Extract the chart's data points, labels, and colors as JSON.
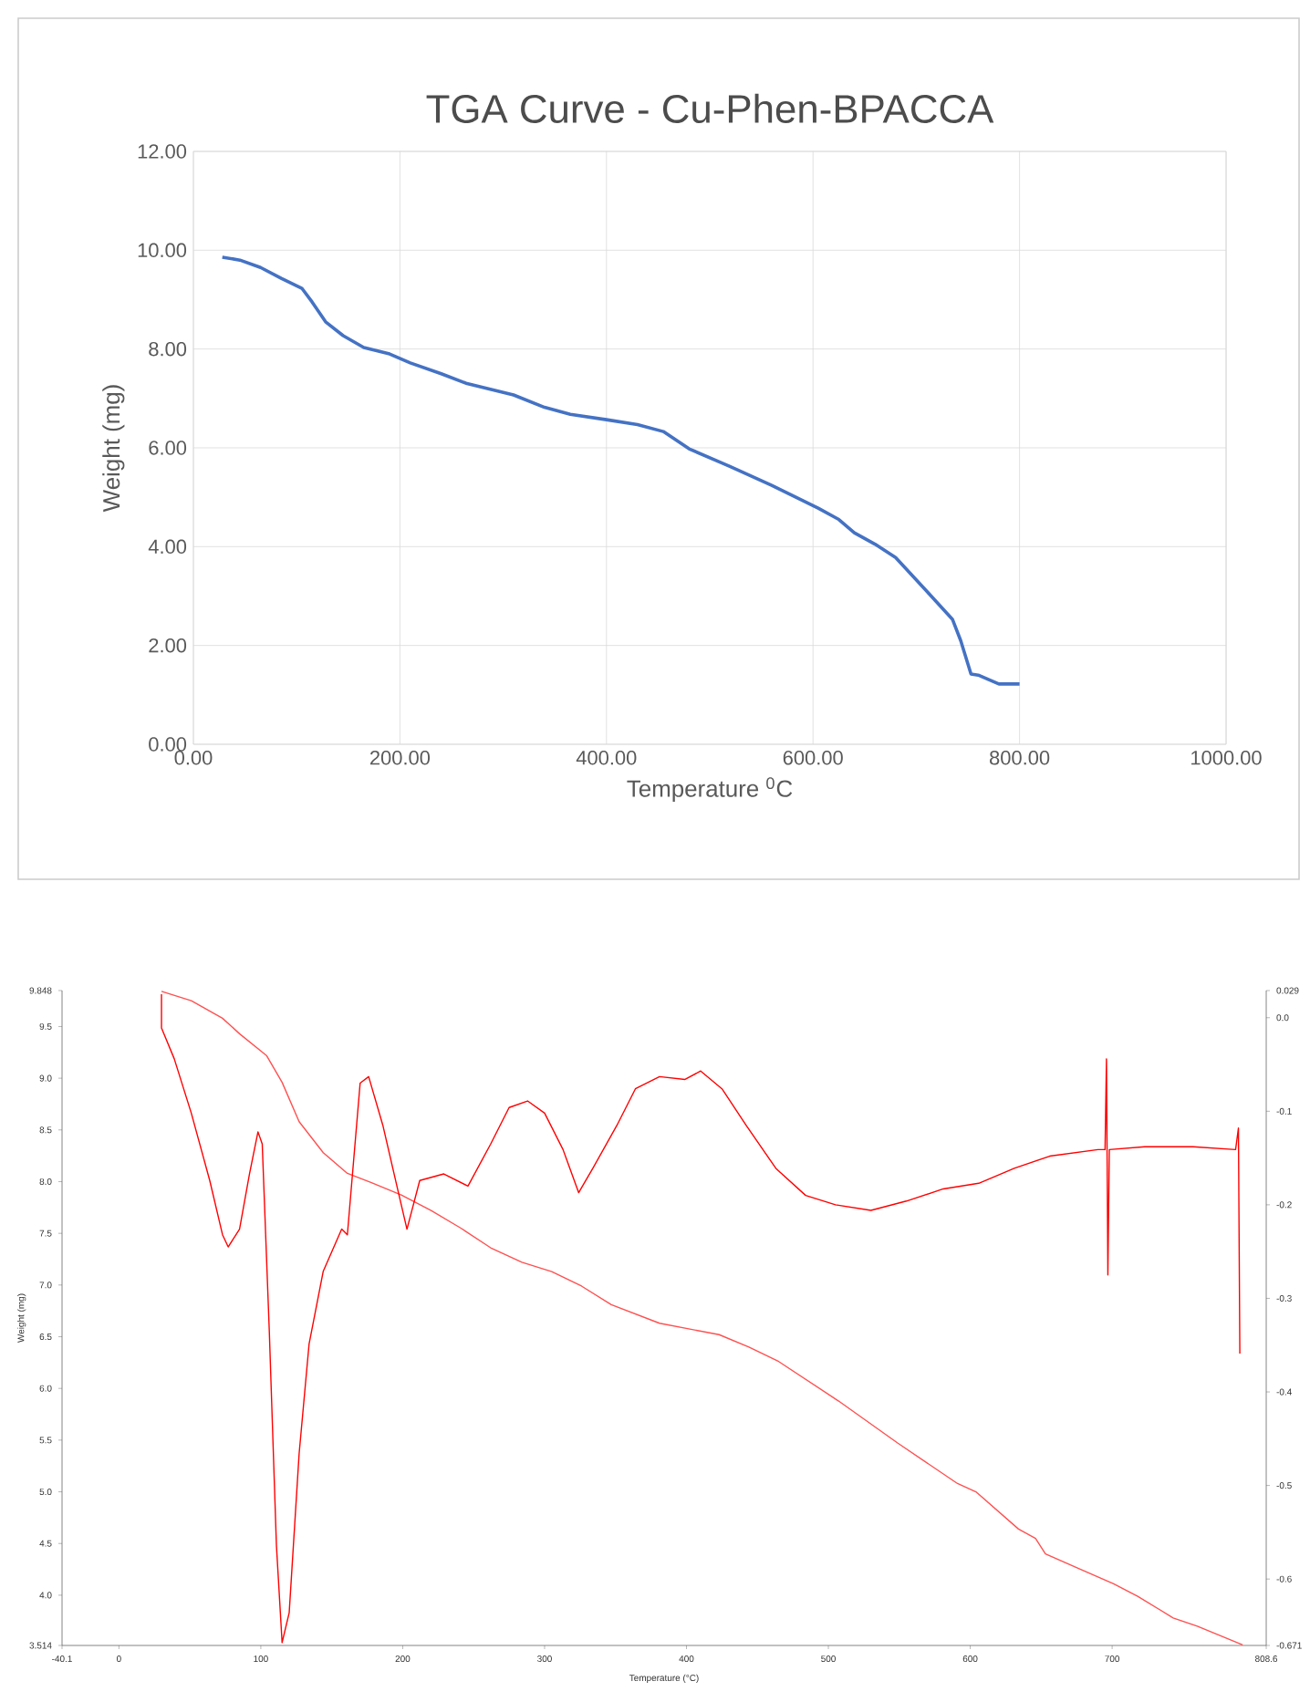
{
  "chart_data": [
    {
      "type": "line",
      "title": "TGA Curve - Cu-Phen-BPACCA",
      "xlabel": "Temperature $^{0}$C",
      "ylabel": "Weight (mg)",
      "grid": true,
      "xlim": [
        0,
        1000
      ],
      "ylim": [
        0,
        12
      ],
      "xticks": [
        {
          "value": 0,
          "label": "0.00"
        },
        {
          "value": 200,
          "label": "200.00"
        },
        {
          "value": 400,
          "label": "400.00"
        },
        {
          "value": 600,
          "label": "600.00"
        },
        {
          "value": 800,
          "label": "800.00"
        },
        {
          "value": 1000,
          "label": "1000.00"
        }
      ],
      "yticks": [
        {
          "value": 0,
          "label": "0.00"
        },
        {
          "value": 2,
          "label": "2.00"
        },
        {
          "value": 4,
          "label": "4.00"
        },
        {
          "value": 6,
          "label": "6.00"
        },
        {
          "value": 8,
          "label": "8.00"
        },
        {
          "value": 10,
          "label": "10.00"
        },
        {
          "value": 12,
          "label": "12.00"
        }
      ],
      "series": [
        {
          "color": "#4472c4",
          "x": [
            28,
            45,
            65,
            85,
            105,
            115,
            128,
            145,
            165,
            190,
            210,
            240,
            265,
            310,
            340,
            365,
            400,
            430,
            455,
            480,
            520,
            560,
            605,
            625,
            640,
            660,
            680,
            710,
            735,
            743,
            753,
            760,
            780,
            800
          ],
          "values": [
            9.86,
            9.8,
            9.65,
            9.43,
            9.23,
            8.95,
            8.55,
            8.27,
            8.03,
            7.9,
            7.72,
            7.5,
            7.3,
            7.07,
            6.82,
            6.68,
            6.57,
            6.47,
            6.33,
            5.98,
            5.62,
            5.24,
            4.78,
            4.55,
            4.28,
            4.05,
            3.78,
            3.1,
            2.53,
            2.1,
            1.42,
            1.4,
            1.22,
            1.22
          ]
        }
      ]
    },
    {
      "type": "line",
      "xlabel": "Temperature (°C)",
      "ylabel": "Weight (mg)",
      "xlim": [
        -40.1,
        808.6
      ],
      "ylim": [
        3.514,
        9.848
      ],
      "y2lim": [
        -0.671,
        0.029
      ],
      "xticks": [
        -40.1,
        0,
        100,
        200,
        300,
        400,
        500,
        600,
        700,
        808.6
      ],
      "yticks": [
        3.514,
        {
          "value": 4,
          "label": "4.0"
        },
        4.5,
        {
          "value": 5,
          "label": "5.0"
        },
        5.5,
        {
          "value": 6,
          "label": "6.0"
        },
        6.5,
        {
          "value": 7,
          "label": "7.0"
        },
        7.5,
        {
          "value": 8,
          "label": "8.0"
        },
        8.5,
        {
          "value": 9,
          "label": "9.0"
        },
        9.5,
        9.848
      ],
      "y2ticks": [
        -0.671,
        -0.6,
        -0.5,
        -0.4,
        -0.3,
        -0.2,
        -0.1,
        {
          "value": 0,
          "label": "0.0"
        },
        0.029
      ],
      "series": [
        {
          "color": "#ff5050",
          "x": [
            30,
            51,
            73,
            85,
            104,
            115,
            127,
            144,
            161,
            178,
            199,
            220,
            241,
            262,
            284,
            305,
            326,
            347,
            381,
            423,
            444,
            465,
            507,
            549,
            591,
            604,
            634,
            646,
            653,
            676,
            701,
            718,
            743,
            760,
            792
          ],
          "values": [
            9.84,
            9.75,
            9.58,
            9.43,
            9.22,
            8.96,
            8.58,
            8.28,
            8.08,
            7.99,
            7.87,
            7.72,
            7.55,
            7.36,
            7.22,
            7.13,
            6.99,
            6.81,
            6.63,
            6.52,
            6.4,
            6.26,
            5.88,
            5.47,
            5.08,
            5.0,
            4.64,
            4.55,
            4.4,
            4.26,
            4.11,
            3.99,
            3.78,
            3.7,
            3.52
          ]
        },
        {
          "color": "#ff0000",
          "axis": "y2",
          "x": [
            30,
            30,
            39,
            51,
            64,
            73,
            77,
            85,
            92,
            98,
            101,
            106,
            111,
            115,
            120,
            127,
            134,
            144,
            157,
            161,
            170,
            176,
            186,
            197,
            203,
            212,
            229,
            246,
            262,
            275,
            288,
            300,
            313,
            324,
            334,
            351,
            364,
            381,
            399,
            410,
            425,
            442,
            463,
            484,
            505,
            530,
            555,
            581,
            606,
            631,
            656,
            690,
            695,
            696,
            697,
            698,
            723,
            757,
            787,
            789,
            790
          ],
          "values": [
            0.025,
            -0.011,
            -0.044,
            -0.102,
            -0.174,
            -0.232,
            -0.245,
            -0.226,
            -0.167,
            -0.122,
            -0.135,
            -0.336,
            -0.564,
            -0.668,
            -0.636,
            -0.466,
            -0.349,
            -0.271,
            -0.226,
            -0.232,
            -0.07,
            -0.063,
            -0.115,
            -0.187,
            -0.226,
            -0.174,
            -0.167,
            -0.18,
            -0.135,
            -0.096,
            -0.089,
            -0.102,
            -0.141,
            -0.187,
            -0.161,
            -0.115,
            -0.076,
            -0.063,
            -0.066,
            -0.057,
            -0.076,
            -0.115,
            -0.161,
            -0.19,
            -0.2,
            -0.206,
            -0.196,
            -0.183,
            -0.177,
            -0.161,
            -0.148,
            -0.141,
            -0.141,
            -0.044,
            -0.275,
            -0.141,
            -0.138,
            -0.138,
            -0.141,
            -0.118,
            -0.359
          ]
        }
      ]
    }
  ]
}
